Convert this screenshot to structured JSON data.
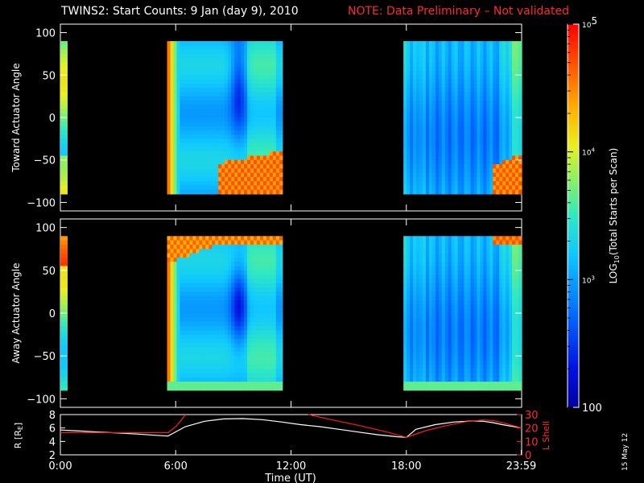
{
  "title": {
    "main": "TWINS2: Start Counts:  9 Jan (day   9), 2010",
    "note": "NOTE: Data Preliminary – Not validated"
  },
  "stamp": "15 May 12",
  "colors": {
    "background": "#000000",
    "foreground": "#ffffff",
    "note": "#ff2a2a",
    "lshell_line": "#ff1a1a",
    "r_line": "#ffffff"
  },
  "chart_data": [
    {
      "type": "heatmap",
      "ylabel": "Toward Actuator Angle",
      "ylim": [
        -110,
        110
      ],
      "yticks": [
        -100,
        -50,
        0,
        50,
        100
      ],
      "xlim": [
        0,
        24
      ],
      "y_coverage": [
        -90,
        90
      ],
      "data_intervals_hours": [
        [
          0,
          0.35
        ],
        [
          5.55,
          11.55
        ],
        [
          17.85,
          24.0
        ]
      ],
      "colorscale": "log10 counts, 100 to 1e5",
      "features": [
        {
          "time": 5.7,
          "description": "high counts near start of pass",
          "level": 20000
        },
        {
          "time": 9.5,
          "angle": 50,
          "description": "low count region",
          "level": 250
        },
        {
          "time": 11.0,
          "angle": -80,
          "description": "high counts at low angles",
          "level": 30000
        },
        {
          "time": 23.5,
          "angle": -80,
          "description": "high counts at low angles",
          "level": 30000
        }
      ]
    },
    {
      "type": "heatmap",
      "ylabel": "Away Actuator Angle",
      "ylim": [
        -110,
        110
      ],
      "yticks": [
        -100,
        -50,
        0,
        50,
        100
      ],
      "xlim": [
        0,
        24
      ],
      "y_coverage": [
        -90,
        90
      ],
      "data_intervals_hours": [
        [
          0,
          0.35
        ],
        [
          5.55,
          11.55
        ],
        [
          17.85,
          24.0
        ]
      ],
      "colorscale": "log10 counts, 100 to 1e5",
      "features": [
        {
          "time": 5.7,
          "description": "high counts near start of pass",
          "level": 20000
        },
        {
          "time": 9.3,
          "angle": 0,
          "description": "low count region",
          "level": 150
        },
        {
          "time": 9.0,
          "angle": 85,
          "description": "high counts at top",
          "level": 25000
        },
        {
          "time": 23.5,
          "angle": 80,
          "description": "high counts at top",
          "level": 30000
        }
      ]
    },
    {
      "type": "line",
      "xlabel": "Time (UT)",
      "xlim": [
        0,
        24
      ],
      "xticks": [
        0,
        6,
        12,
        18,
        23.98
      ],
      "xticklabels": [
        "0:00",
        "6:00",
        "12:00",
        "18:00",
        "23:59"
      ],
      "ylabel_left": "R [Rₑ]",
      "ylabel_left_main": "R [R",
      "ylabel_left_sub": "E",
      "ylabel_left_end": "]",
      "ylim_left": [
        2,
        8
      ],
      "yticks_left": [
        2,
        4,
        6,
        8
      ],
      "ylabel_right": "L Shell",
      "ylim_right": [
        0,
        30
      ],
      "yticks_right": [
        0,
        10,
        20,
        30
      ],
      "series": [
        {
          "axis": "left",
          "x": [
            0,
            1,
            2,
            3,
            4,
            5,
            5.6,
            6.5,
            7.5,
            8.5,
            9.5,
            10.5,
            11.5,
            12.5,
            13.5,
            14.5,
            15.5,
            16.5,
            17.5,
            18.0,
            18.5,
            19.5,
            20.5,
            21.5,
            22.0,
            22.5,
            23.0,
            24.0
          ],
          "y": [
            5.7,
            5.55,
            5.4,
            5.25,
            5.1,
            4.9,
            4.8,
            6.2,
            7.0,
            7.35,
            7.4,
            7.25,
            6.9,
            6.5,
            6.2,
            5.8,
            5.4,
            5.0,
            4.7,
            4.6,
            5.8,
            6.5,
            6.9,
            7.05,
            7.0,
            6.8,
            6.5,
            6.0
          ]
        },
        {
          "axis": "right",
          "x": [
            0,
            1,
            2,
            3,
            4,
            5,
            5.6,
            6.0,
            6.3,
            6.5
          ],
          "y": [
            16.5,
            16.5,
            16.5,
            16.5,
            16.5,
            16.5,
            16.5,
            21,
            26,
            30
          ]
        },
        {
          "axis": "right",
          "x": [
            12.9,
            14.0,
            15.5,
            17.0,
            18.0,
            19.0,
            20.0,
            21.0,
            22.0,
            22.5,
            23.0,
            24.0
          ],
          "y": [
            30,
            26.5,
            22,
            17,
            13,
            18,
            21.5,
            24.5,
            26,
            25.5,
            24,
            20
          ]
        }
      ]
    }
  ],
  "colorbar": {
    "label_main": "LOG",
    "label_sub": "10",
    "label_rest": "(Total Starts per Scan)",
    "tick_labels": [
      {
        "value": 100000,
        "base": "10",
        "exp": "5"
      },
      {
        "value": 10000,
        "base": "10",
        "exp": "4"
      },
      {
        "value": 1000,
        "base": "10",
        "exp": "3"
      },
      {
        "value": 100,
        "base": "100",
        "exp": ""
      }
    ],
    "min": 100,
    "max": 100000
  }
}
